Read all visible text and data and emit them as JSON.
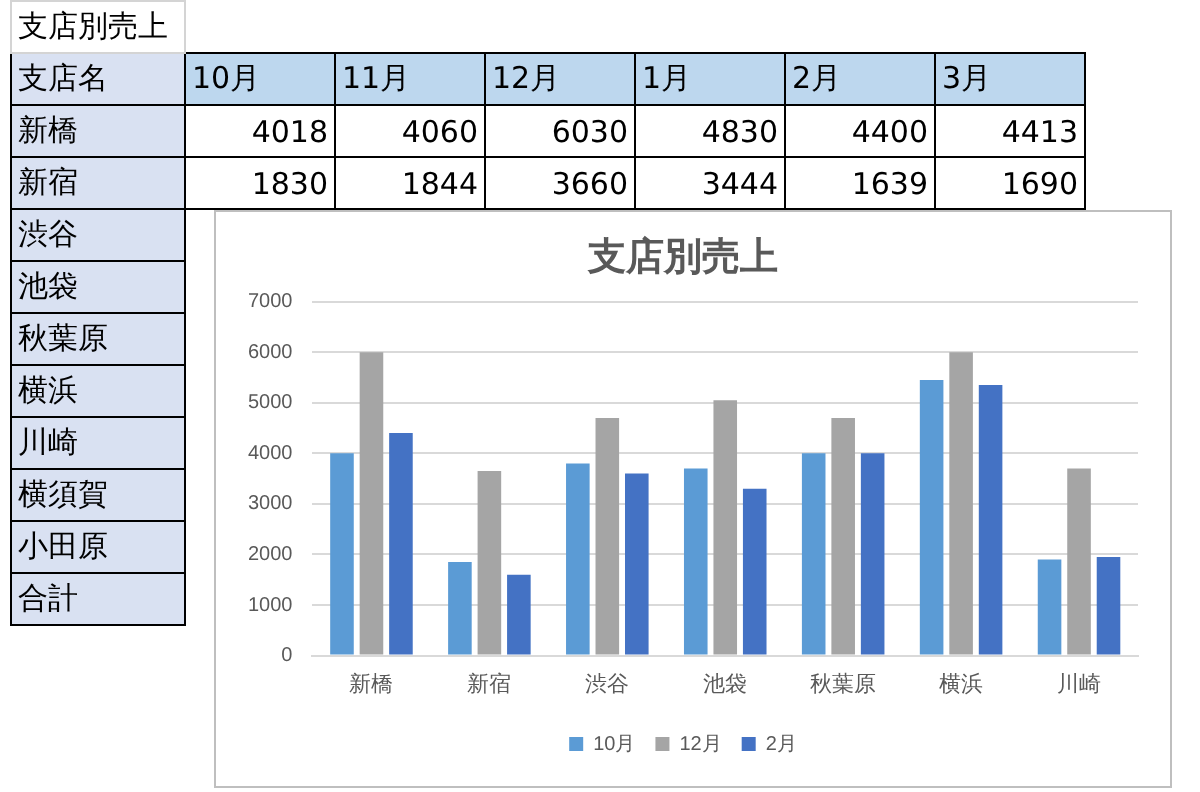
{
  "chart_data": [
    {
      "type": "other",
      "title": "支店別売上",
      "xlabel": "支店名",
      "categories": [
        "10月",
        "11月",
        "12月",
        "1月",
        "2月",
        "3月"
      ],
      "y_categories": [
        "新橋",
        "新宿",
        "渋谷",
        "池袋",
        "秋葉原",
        "横浜",
        "川崎",
        "横須賀",
        "小田原",
        "合計"
      ],
      "annotations": [
        "4018",
        "4060",
        "6030",
        "4830",
        "4400",
        "4413",
        "1830",
        "1844",
        "3660",
        "3444",
        "1639",
        "1690"
      ]
    },
    {
      "type": "bar",
      "title": "支店別売上",
      "categories": [
        "新橋",
        "新宿",
        "渋谷",
        "池袋",
        "秋葉原",
        "横浜",
        "川崎"
      ],
      "series": [
        {
          "name": "10月",
          "color": "#5b9bd5",
          "values": [
            4000,
            1850,
            3800,
            3700,
            4000,
            5450,
            1900
          ]
        },
        {
          "name": "12月",
          "color": "#a5a5a5",
          "values": [
            6000,
            3650,
            4700,
            5050,
            4700,
            6000,
            3700
          ]
        },
        {
          "name": "2月",
          "color": "#4472c4",
          "values": [
            4400,
            1600,
            3600,
            3300,
            4000,
            5350,
            1950
          ]
        }
      ],
      "ylim": [
        0,
        7000
      ],
      "yticks": [
        0,
        1000,
        2000,
        3000,
        4000,
        5000,
        6000,
        7000
      ],
      "grid": "y",
      "legend": "bottom"
    }
  ]
}
